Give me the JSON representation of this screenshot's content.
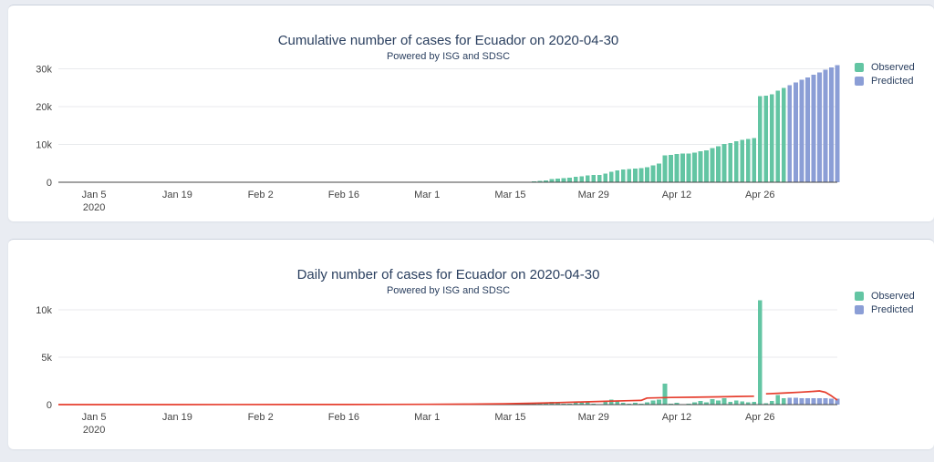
{
  "colors": {
    "observed": "#63c5a3",
    "predicted": "#8b9ed6",
    "fit_line": "#e63f2f",
    "title_text": "#2a3f5f",
    "tick_text": "#444444",
    "grid": "#e8eaed",
    "axis": "#444444",
    "page_background": "#e9ecf2",
    "panel_background": "#ffffff"
  },
  "chart_data": [
    {
      "type": "bar",
      "title": "Cumulative number of cases for Ecuador on 2020-04-30",
      "subtitle": "Powered by ISG and SDSC",
      "xlabel": "",
      "ylabel": "",
      "grid": true,
      "legend_position": "right-top",
      "x_domain": [
        "2019-12-30",
        "2020-05-09"
      ],
      "ylim": [
        0,
        31800
      ],
      "y_ticks": [
        {
          "value": 0,
          "label": "0"
        },
        {
          "value": 10000,
          "label": "10k"
        },
        {
          "value": 20000,
          "label": "20k"
        },
        {
          "value": 30000,
          "label": "30k"
        }
      ],
      "x_ticks": [
        {
          "date": "2020-01-05",
          "label": "Jan 5",
          "sub": "2020"
        },
        {
          "date": "2020-01-19",
          "label": "Jan 19"
        },
        {
          "date": "2020-02-02",
          "label": "Feb 2"
        },
        {
          "date": "2020-02-16",
          "label": "Feb 16"
        },
        {
          "date": "2020-03-01",
          "label": "Mar 1"
        },
        {
          "date": "2020-03-15",
          "label": "Mar 15"
        },
        {
          "date": "2020-03-29",
          "label": "Mar 29"
        },
        {
          "date": "2020-04-12",
          "label": "Apr 12"
        },
        {
          "date": "2020-04-26",
          "label": "Apr 26"
        }
      ],
      "series": [
        {
          "name": "Observed",
          "color_key": "observed",
          "start": "2020-03-01",
          "values": [
            6,
            7,
            7,
            10,
            13,
            14,
            14,
            15,
            15,
            15,
            17,
            19,
            23,
            28,
            37,
            58,
            111,
            168,
            260,
            367,
            506,
            789,
            981,
            1082,
            1173,
            1403,
            1595,
            1823,
            1924,
            1962,
            2240,
            2748,
            3163,
            3368,
            3465,
            3646,
            3747,
            3995,
            4450,
            4965,
            7161,
            7257,
            7466,
            7529,
            7603,
            7858,
            8225,
            8450,
            9022,
            9468,
            10128,
            10398,
            10850,
            11183,
            11421,
            11716,
            22719,
            22867,
            23240,
            24258,
            24934
          ]
        },
        {
          "name": "Predicted",
          "color_key": "predicted",
          "start": "2020-05-01",
          "values": [
            25654,
            26354,
            27044,
            27724,
            28394,
            29054,
            29704,
            30344,
            30974
          ]
        }
      ]
    },
    {
      "type": "bar",
      "title": "Daily number of cases for Ecuador on 2020-04-30",
      "subtitle": "Powered by ISG and SDSC",
      "xlabel": "",
      "ylabel": "",
      "grid": true,
      "legend_position": "right-top",
      "x_domain": [
        "2019-12-30",
        "2020-05-09"
      ],
      "ylim": [
        0,
        11900
      ],
      "y_ticks": [
        {
          "value": 0,
          "label": "0"
        },
        {
          "value": 5000,
          "label": "5k"
        },
        {
          "value": 10000,
          "label": "10k"
        }
      ],
      "x_ticks": [
        {
          "date": "2020-01-05",
          "label": "Jan 5",
          "sub": "2020"
        },
        {
          "date": "2020-01-19",
          "label": "Jan 19"
        },
        {
          "date": "2020-02-02",
          "label": "Feb 2"
        },
        {
          "date": "2020-02-16",
          "label": "Feb 16"
        },
        {
          "date": "2020-03-01",
          "label": "Mar 1"
        },
        {
          "date": "2020-03-15",
          "label": "Mar 15"
        },
        {
          "date": "2020-03-29",
          "label": "Mar 29"
        },
        {
          "date": "2020-04-12",
          "label": "Apr 12"
        },
        {
          "date": "2020-04-26",
          "label": "Apr 26"
        }
      ],
      "series": [
        {
          "name": "Observed",
          "color_key": "observed",
          "start": "2020-03-01",
          "values": [
            6,
            1,
            0,
            3,
            3,
            1,
            0,
            1,
            0,
            0,
            2,
            2,
            4,
            5,
            9,
            21,
            53,
            57,
            92,
            107,
            139,
            283,
            192,
            101,
            91,
            230,
            192,
            228,
            101,
            38,
            278,
            508,
            415,
            205,
            97,
            181,
            101,
            248,
            455,
            515,
            2196,
            96,
            209,
            63,
            74,
            255,
            367,
            225,
            572,
            446,
            660,
            270,
            452,
            333,
            238,
            295,
            11003,
            148,
            373,
            1018,
            676
          ]
        },
        {
          "name": "Predicted",
          "color_key": "predicted",
          "start": "2020-05-01",
          "values": [
            720,
            700,
            690,
            680,
            670,
            660,
            650,
            640,
            630
          ]
        }
      ],
      "line_series": [
        {
          "color_key": "fit_line",
          "segments": [
            [
              [
                "2019-12-30",
                2
              ],
              [
                "2020-01-19",
                4
              ],
              [
                "2020-02-09",
                8
              ],
              [
                "2020-02-23",
                15
              ],
              [
                "2020-03-01",
                28
              ],
              [
                "2020-03-08",
                48
              ],
              [
                "2020-03-14",
                85
              ],
              [
                "2020-03-19",
                140
              ],
              [
                "2020-03-23",
                210
              ],
              [
                "2020-03-27",
                280
              ],
              [
                "2020-03-31",
                350
              ],
              [
                "2020-04-04",
                410
              ],
              [
                "2020-04-06",
                440
              ],
              [
                "2020-04-07",
                690
              ],
              [
                "2020-04-11",
                745
              ],
              [
                "2020-04-15",
                775
              ],
              [
                "2020-04-19",
                815
              ],
              [
                "2020-04-22",
                855
              ],
              [
                "2020-04-25",
                880
              ]
            ],
            [
              [
                "2020-04-27",
                1130
              ],
              [
                "2020-04-29",
                1190
              ],
              [
                "2020-05-01",
                1250
              ],
              [
                "2020-05-03",
                1310
              ],
              [
                "2020-05-05",
                1390
              ],
              [
                "2020-05-06",
                1440
              ],
              [
                "2020-05-07",
                1300
              ],
              [
                "2020-05-08",
                920
              ],
              [
                "2020-05-09",
                470
              ]
            ]
          ]
        }
      ]
    }
  ]
}
